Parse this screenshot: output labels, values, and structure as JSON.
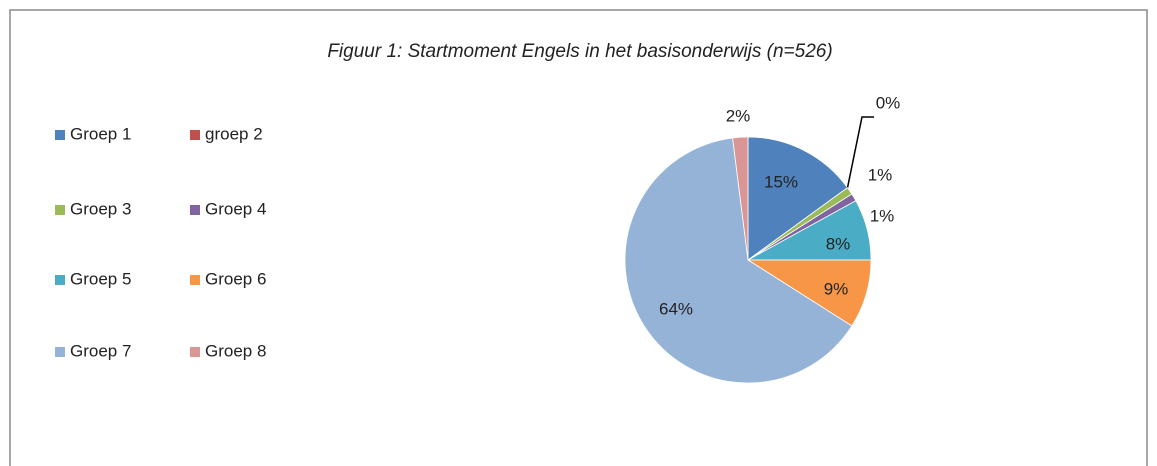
{
  "chart_data": {
    "type": "pie",
    "title": "Figuur 1: Startmoment Engels in het basisonderwijs (n=526)",
    "categories": [
      "Groep 1",
      "groep 2",
      "Groep 3",
      "Groep 4",
      "Groep 5",
      "Groep 6",
      "Groep 7",
      "Groep 8"
    ],
    "values": [
      15,
      0,
      1,
      1,
      8,
      9,
      64,
      2
    ],
    "value_labels": [
      "15%",
      "0%",
      "1%",
      "1%",
      "8%",
      "9%",
      "64%",
      "2%"
    ],
    "colors": [
      "#4f81bd",
      "#c0504d",
      "#9bbb59",
      "#8064a2",
      "#4bacc6",
      "#f79646",
      "#95b3d7",
      "#d99694"
    ],
    "legend": "left"
  }
}
